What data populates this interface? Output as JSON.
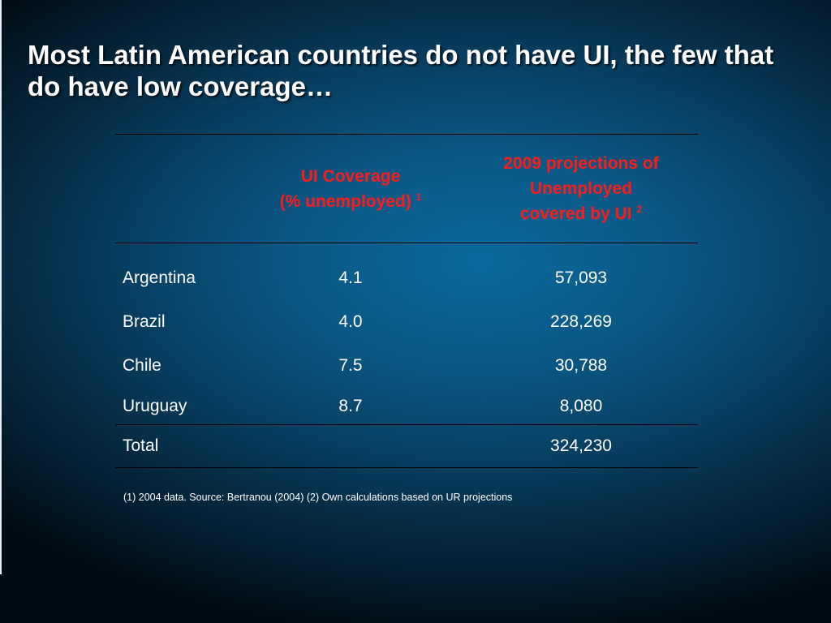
{
  "slide": {
    "title": "Most Latin American countries do not have UI, the few that do have low coverage…"
  },
  "table": {
    "columns": {
      "country": "",
      "coverage_line1": "UI Coverage",
      "coverage_line2": "(%  unemployed)",
      "coverage_note": "1",
      "projection_line1": "2009 projections of",
      "projection_line2": "Unemployed",
      "projection_line3": "covered  by UI",
      "projection_note": "2"
    },
    "rows": [
      {
        "country": "Argentina",
        "coverage": "4.1",
        "projection": "57,093"
      },
      {
        "country": "Brazil",
        "coverage": "4.0",
        "projection": "228,269"
      },
      {
        "country": "Chile",
        "coverage": "7.5",
        "projection": "30,788"
      },
      {
        "country": "Uruguay",
        "coverage": "8.7",
        "projection": "8,080"
      }
    ],
    "total": {
      "label": "Total",
      "coverage": "",
      "projection": "324,230"
    }
  },
  "footnote": "(1) 2004 data. Source: Bertranou (2004) (2) Own calculations based on UR projections",
  "colors": {
    "header_text": "#ff1a1a",
    "body_text": "#ffffff",
    "background": "#0a5683"
  }
}
